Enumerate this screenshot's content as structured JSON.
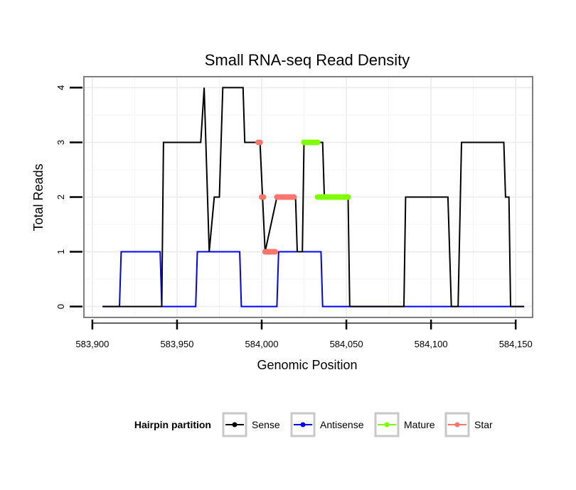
{
  "chart_data": {
    "type": "line",
    "title": "Small RNA-seq Read Density",
    "xlabel": "Genomic Position",
    "ylabel": "Total Reads",
    "xlim": [
      583895,
      584160
    ],
    "ylim": [
      -0.2,
      4.2
    ],
    "x_ticks": [
      583900,
      583950,
      584000,
      584050,
      584100,
      584150
    ],
    "x_tick_labels": [
      "583,900",
      "583,950",
      "584,000",
      "584,050",
      "584,100",
      "584,150"
    ],
    "y_ticks": [
      0,
      1,
      2,
      3,
      4
    ],
    "y_tick_labels": [
      "0",
      "1",
      "2",
      "3",
      "4"
    ],
    "grid": true,
    "legend": {
      "title": "Hairpin partition",
      "position": "bottom",
      "entries": [
        "Sense",
        "Antisense",
        "Mature",
        "Star"
      ]
    },
    "series": [
      {
        "name": "Sense",
        "color": "#000000",
        "style": "line",
        "x": [
          583906,
          583941,
          583942,
          583964,
          583966,
          583969,
          583972,
          583975,
          583977,
          583989,
          583990,
          583995,
          583999,
          584002,
          584009,
          584020,
          584021,
          584024,
          584025,
          584036,
          584037,
          584051,
          584052,
          584084,
          584085,
          584110,
          584112,
          584116,
          584118,
          584143,
          584144,
          584146,
          584147,
          584155
        ],
        "y": [
          0,
          0,
          3,
          3,
          4,
          1,
          2,
          2,
          4,
          4,
          3,
          3,
          3,
          1,
          2,
          2,
          1,
          1,
          3,
          3,
          2,
          2,
          0,
          0,
          2,
          2,
          0,
          0,
          3,
          3,
          2,
          2,
          0,
          0
        ]
      },
      {
        "name": "Antisense",
        "color": "#0000ff",
        "style": "line",
        "x": [
          583906,
          583916,
          583917,
          583940,
          583941,
          583961,
          583962,
          583987,
          583988,
          584009,
          584010,
          584035,
          584036,
          584155
        ],
        "y": [
          0,
          0,
          1,
          1,
          0,
          0,
          1,
          1,
          0,
          0,
          1,
          1,
          0,
          0
        ]
      },
      {
        "name": "Mature",
        "color": "#80ff00",
        "style": "points",
        "x": [
          584025,
          584026,
          584027,
          584028,
          584029,
          584030,
          584031,
          584032,
          584033,
          584033,
          584034,
          584035,
          584036,
          584037,
          584038,
          584039,
          584040,
          584041,
          584042,
          584043,
          584044,
          584045,
          584046,
          584047,
          584048,
          584049,
          584050,
          584051
        ],
        "y": [
          3,
          3,
          3,
          3,
          3,
          3,
          3,
          3,
          3,
          2,
          2,
          2,
          2,
          2,
          2,
          2,
          2,
          2,
          2,
          2,
          2,
          2,
          2,
          2,
          2,
          2,
          2,
          2
        ]
      },
      {
        "name": "Star",
        "color": "#f8766d",
        "style": "points",
        "x": [
          583998,
          583999,
          584000,
          584001,
          584002,
          584003,
          584004,
          584005,
          584006,
          584007,
          584008,
          584009,
          584010,
          584011,
          584012,
          584013,
          584014,
          584015,
          584016,
          584017,
          584018,
          584019
        ],
        "y": [
          3,
          3,
          2,
          2,
          1,
          1,
          1,
          1,
          1,
          1,
          1,
          2,
          2,
          2,
          2,
          2,
          2,
          2,
          2,
          2,
          2,
          2
        ]
      }
    ]
  }
}
